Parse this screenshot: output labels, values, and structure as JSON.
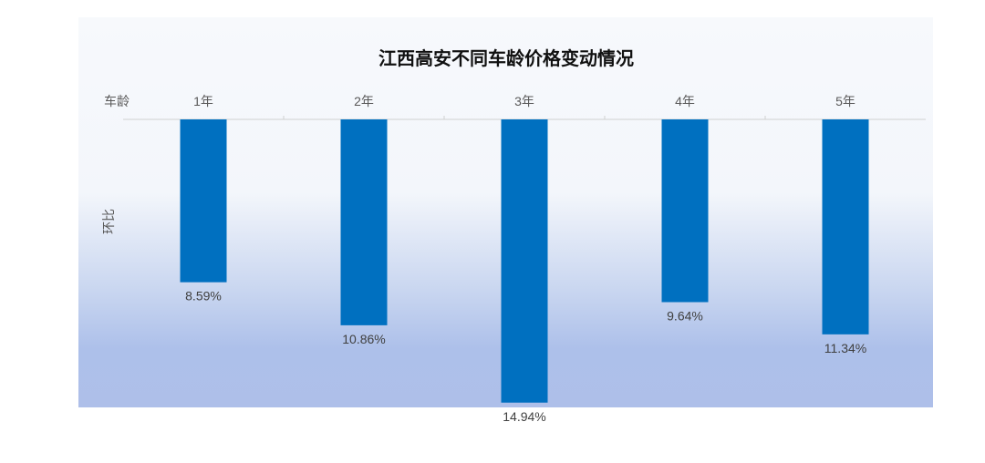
{
  "chart_data": {
    "type": "bar",
    "title": "江西高安不同车龄价格变动情况",
    "xlabel": "车龄",
    "ylabel": "环比",
    "categories": [
      "1年",
      "2年",
      "3年",
      "4年",
      "5年"
    ],
    "values": [
      8.59,
      10.86,
      14.94,
      9.64,
      11.34
    ],
    "data_labels": [
      "8.59%",
      "10.86%",
      "14.94%",
      "9.64%",
      "11.34%"
    ],
    "x_axis_position": "top",
    "bars_direction": "downward",
    "ylim": [
      0,
      20
    ],
    "grid": false,
    "legend": "none",
    "colors": {
      "bar": "#0070c0",
      "axis": "#d0d0d0"
    }
  }
}
